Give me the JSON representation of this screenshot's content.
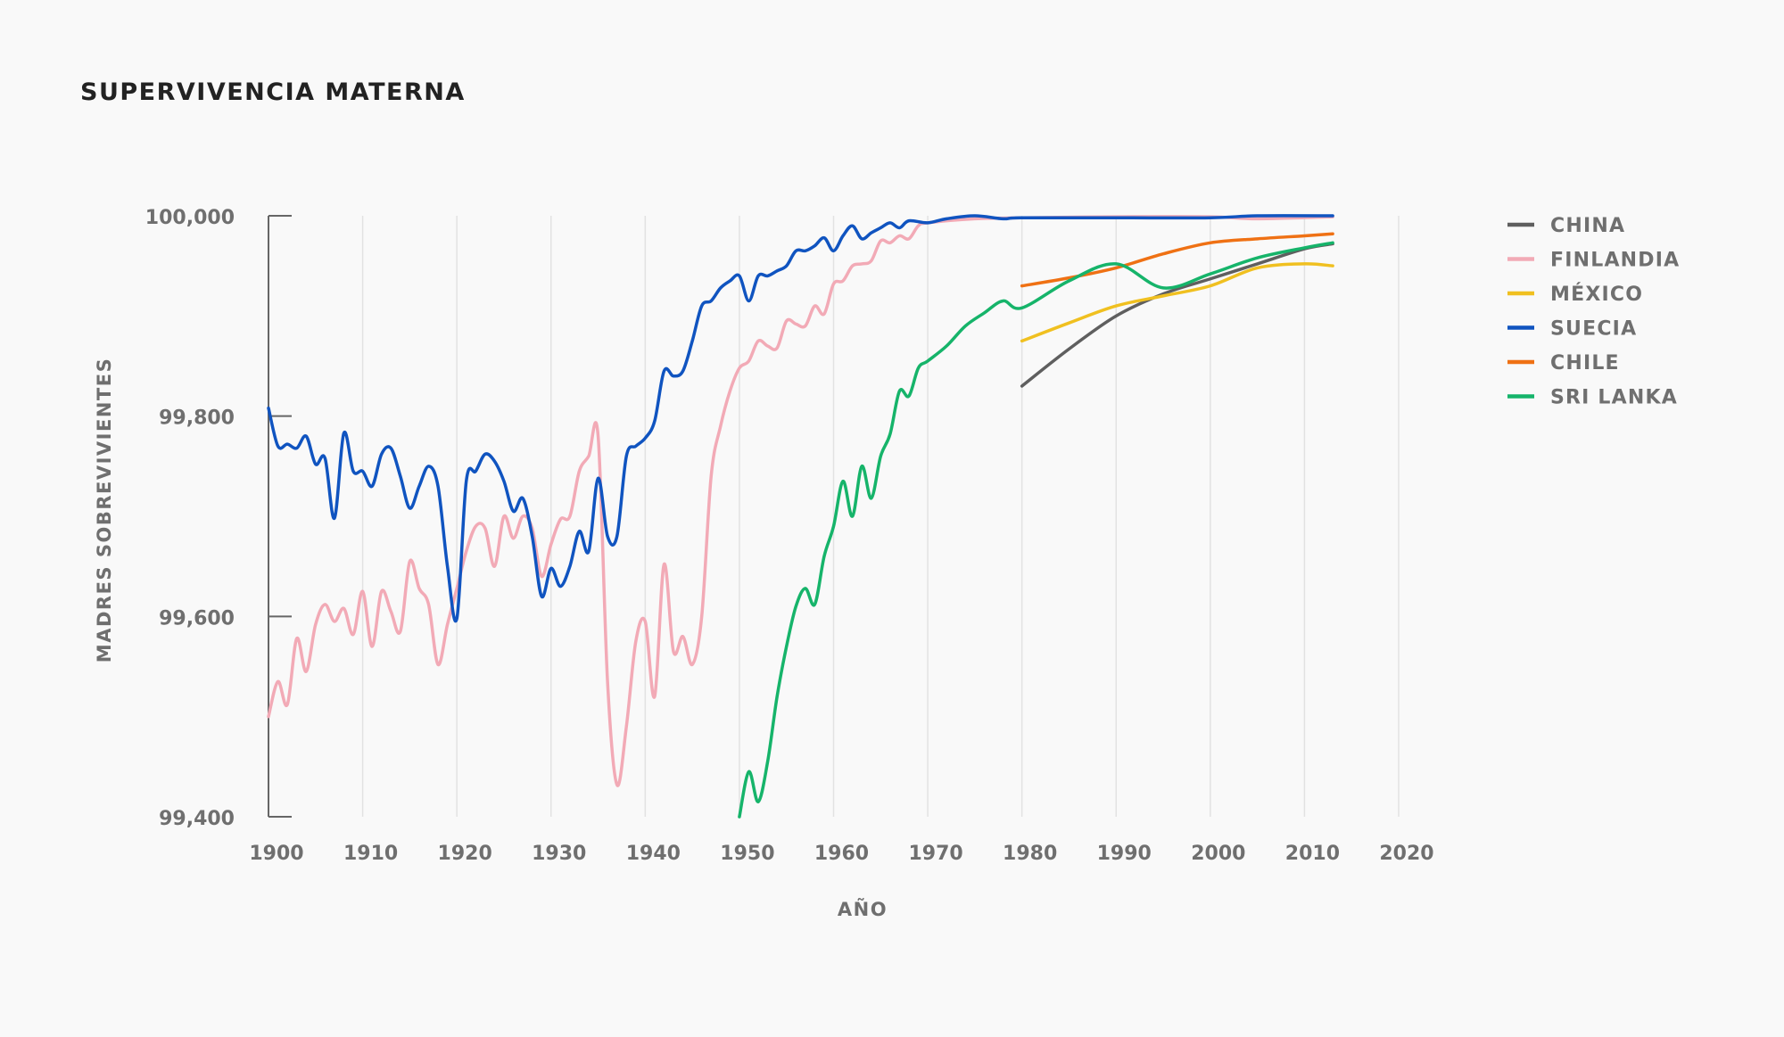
{
  "chart_data": {
    "type": "line",
    "title": "SUPERVIVENCIA MATERNA",
    "xlabel": "AÑO",
    "ylabel": "MADRES SOBREVIVIENTES",
    "xlim": [
      1900,
      2020
    ],
    "ylim": [
      99400,
      100000
    ],
    "xticks": [
      1900,
      1910,
      1920,
      1930,
      1940,
      1950,
      1960,
      1970,
      1980,
      1990,
      2000,
      2010,
      2020
    ],
    "xtick_labels": [
      "1900",
      "1910",
      "1920",
      "1930",
      "1940",
      "1950",
      "1960",
      "1970",
      "1980",
      "1990",
      "2000",
      "2010",
      "2020"
    ],
    "yticks": [
      99400,
      99600,
      99800,
      100000
    ],
    "ytick_labels": [
      "99,400",
      "99,600",
      "99,800",
      "100,000"
    ],
    "grid": "vertical",
    "legend": "right",
    "series": [
      {
        "name": "CHINA",
        "color": "#5f5f5f",
        "points": [
          [
            1980,
            99830
          ],
          [
            1985,
            99867
          ],
          [
            1990,
            99900
          ],
          [
            1995,
            99922
          ],
          [
            2000,
            99937
          ],
          [
            2005,
            99952
          ],
          [
            2010,
            99967
          ],
          [
            2013,
            99972
          ]
        ]
      },
      {
        "name": "FINLANDIA",
        "color": "#f2aab6",
        "points": [
          [
            1900,
            99500
          ],
          [
            1901,
            99535
          ],
          [
            1902,
            99512
          ],
          [
            1903,
            99578
          ],
          [
            1904,
            99545
          ],
          [
            1905,
            99592
          ],
          [
            1906,
            99612
          ],
          [
            1907,
            99595
          ],
          [
            1908,
            99608
          ],
          [
            1909,
            99582
          ],
          [
            1910,
            99625
          ],
          [
            1911,
            99570
          ],
          [
            1912,
            99625
          ],
          [
            1913,
            99605
          ],
          [
            1914,
            99585
          ],
          [
            1915,
            99655
          ],
          [
            1916,
            99628
          ],
          [
            1917,
            99612
          ],
          [
            1918,
            99552
          ],
          [
            1919,
            99592
          ],
          [
            1920,
            99628
          ],
          [
            1921,
            99665
          ],
          [
            1922,
            99690
          ],
          [
            1923,
            99688
          ],
          [
            1924,
            99650
          ],
          [
            1925,
            99700
          ],
          [
            1926,
            99678
          ],
          [
            1927,
            99700
          ],
          [
            1928,
            99688
          ],
          [
            1929,
            99640
          ],
          [
            1930,
            99672
          ],
          [
            1931,
            99697
          ],
          [
            1932,
            99700
          ],
          [
            1933,
            99745
          ],
          [
            1934,
            99760
          ],
          [
            1935,
            99780
          ],
          [
            1936,
            99535
          ],
          [
            1937,
            99432
          ],
          [
            1938,
            99490
          ],
          [
            1939,
            99575
          ],
          [
            1940,
            99595
          ],
          [
            1941,
            99520
          ],
          [
            1942,
            99652
          ],
          [
            1943,
            99565
          ],
          [
            1944,
            99580
          ],
          [
            1945,
            99552
          ],
          [
            1946,
            99600
          ],
          [
            1947,
            99740
          ],
          [
            1948,
            99790
          ],
          [
            1949,
            99825
          ],
          [
            1950,
            99848
          ],
          [
            1951,
            99855
          ],
          [
            1952,
            99875
          ],
          [
            1953,
            99870
          ],
          [
            1954,
            99868
          ],
          [
            1955,
            99895
          ],
          [
            1956,
            99892
          ],
          [
            1957,
            99890
          ],
          [
            1958,
            99910
          ],
          [
            1959,
            99902
          ],
          [
            1960,
            99932
          ],
          [
            1961,
            99935
          ],
          [
            1962,
            99950
          ],
          [
            1963,
            99952
          ],
          [
            1964,
            99955
          ],
          [
            1965,
            99975
          ],
          [
            1966,
            99973
          ],
          [
            1967,
            99980
          ],
          [
            1968,
            99977
          ],
          [
            1969,
            99990
          ],
          [
            1970,
            99993
          ],
          [
            1975,
            99997
          ],
          [
            1980,
            99998
          ],
          [
            1990,
            99999
          ],
          [
            2000,
            99999
          ],
          [
            2005,
            99997
          ],
          [
            2013,
            99999
          ]
        ]
      },
      {
        "name": "MÉXICO",
        "color": "#f0c020",
        "points": [
          [
            1980,
            99875
          ],
          [
            1985,
            99893
          ],
          [
            1990,
            99910
          ],
          [
            1995,
            99920
          ],
          [
            2000,
            99930
          ],
          [
            2005,
            99948
          ],
          [
            2010,
            99952
          ],
          [
            2013,
            99950
          ]
        ]
      },
      {
        "name": "SUECIA",
        "color": "#1054c0",
        "points": [
          [
            1900,
            99808
          ],
          [
            1901,
            99770
          ],
          [
            1902,
            99772
          ],
          [
            1903,
            99768
          ],
          [
            1904,
            99780
          ],
          [
            1905,
            99752
          ],
          [
            1906,
            99758
          ],
          [
            1907,
            99698
          ],
          [
            1908,
            99783
          ],
          [
            1909,
            99745
          ],
          [
            1910,
            99745
          ],
          [
            1911,
            99730
          ],
          [
            1912,
            99762
          ],
          [
            1913,
            99768
          ],
          [
            1914,
            99740
          ],
          [
            1915,
            99708
          ],
          [
            1916,
            99730
          ],
          [
            1917,
            99750
          ],
          [
            1918,
            99730
          ],
          [
            1919,
            99650
          ],
          [
            1920,
            99598
          ],
          [
            1921,
            99735
          ],
          [
            1922,
            99745
          ],
          [
            1923,
            99762
          ],
          [
            1924,
            99755
          ],
          [
            1925,
            99735
          ],
          [
            1926,
            99705
          ],
          [
            1927,
            99718
          ],
          [
            1928,
            99680
          ],
          [
            1929,
            99620
          ],
          [
            1930,
            99648
          ],
          [
            1931,
            99630
          ],
          [
            1932,
            99650
          ],
          [
            1933,
            99685
          ],
          [
            1934,
            99665
          ],
          [
            1935,
            99738
          ],
          [
            1936,
            99680
          ],
          [
            1937,
            99680
          ],
          [
            1938,
            99760
          ],
          [
            1939,
            99770
          ],
          [
            1940,
            99778
          ],
          [
            1941,
            99795
          ],
          [
            1942,
            99845
          ],
          [
            1943,
            99840
          ],
          [
            1944,
            99845
          ],
          [
            1945,
            99875
          ],
          [
            1946,
            99910
          ],
          [
            1947,
            99915
          ],
          [
            1948,
            99928
          ],
          [
            1949,
            99935
          ],
          [
            1950,
            99940
          ],
          [
            1951,
            99915
          ],
          [
            1952,
            99940
          ],
          [
            1953,
            99940
          ],
          [
            1954,
            99945
          ],
          [
            1955,
            99950
          ],
          [
            1956,
            99965
          ],
          [
            1957,
            99965
          ],
          [
            1958,
            99970
          ],
          [
            1959,
            99978
          ],
          [
            1960,
            99965
          ],
          [
            1961,
            99980
          ],
          [
            1962,
            99990
          ],
          [
            1963,
            99977
          ],
          [
            1964,
            99983
          ],
          [
            1965,
            99988
          ],
          [
            1966,
            99993
          ],
          [
            1967,
            99988
          ],
          [
            1968,
            99995
          ],
          [
            1970,
            99993
          ],
          [
            1972,
            99997
          ],
          [
            1975,
            100000
          ],
          [
            1978,
            99997
          ],
          [
            1980,
            99998
          ],
          [
            1990,
            99998
          ],
          [
            2000,
            99998
          ],
          [
            2005,
            100000
          ],
          [
            2013,
            100000
          ]
        ]
      },
      {
        "name": "CHILE",
        "color": "#ef7114",
        "points": [
          [
            1980,
            99930
          ],
          [
            1985,
            99938
          ],
          [
            1990,
            99948
          ],
          [
            1995,
            99962
          ],
          [
            2000,
            99973
          ],
          [
            2005,
            99977
          ],
          [
            2010,
            99980
          ],
          [
            2013,
            99982
          ]
        ]
      },
      {
        "name": "SRI LANKA",
        "color": "#16b46a",
        "points": [
          [
            1950,
            99400
          ],
          [
            1951,
            99445
          ],
          [
            1952,
            99415
          ],
          [
            1953,
            99455
          ],
          [
            1954,
            99520
          ],
          [
            1955,
            99570
          ],
          [
            1956,
            99610
          ],
          [
            1957,
            99628
          ],
          [
            1958,
            99612
          ],
          [
            1959,
            99660
          ],
          [
            1960,
            99690
          ],
          [
            1961,
            99735
          ],
          [
            1962,
            99700
          ],
          [
            1963,
            99750
          ],
          [
            1964,
            99718
          ],
          [
            1965,
            99760
          ],
          [
            1966,
            99782
          ],
          [
            1967,
            99825
          ],
          [
            1968,
            99820
          ],
          [
            1969,
            99848
          ],
          [
            1970,
            99855
          ],
          [
            1972,
            99870
          ],
          [
            1974,
            99890
          ],
          [
            1976,
            99903
          ],
          [
            1978,
            99915
          ],
          [
            1980,
            99908
          ],
          [
            1985,
            99935
          ],
          [
            1990,
            99952
          ],
          [
            1995,
            99928
          ],
          [
            2000,
            99942
          ],
          [
            2005,
            99958
          ],
          [
            2010,
            99968
          ],
          [
            2013,
            99973
          ]
        ]
      }
    ]
  }
}
